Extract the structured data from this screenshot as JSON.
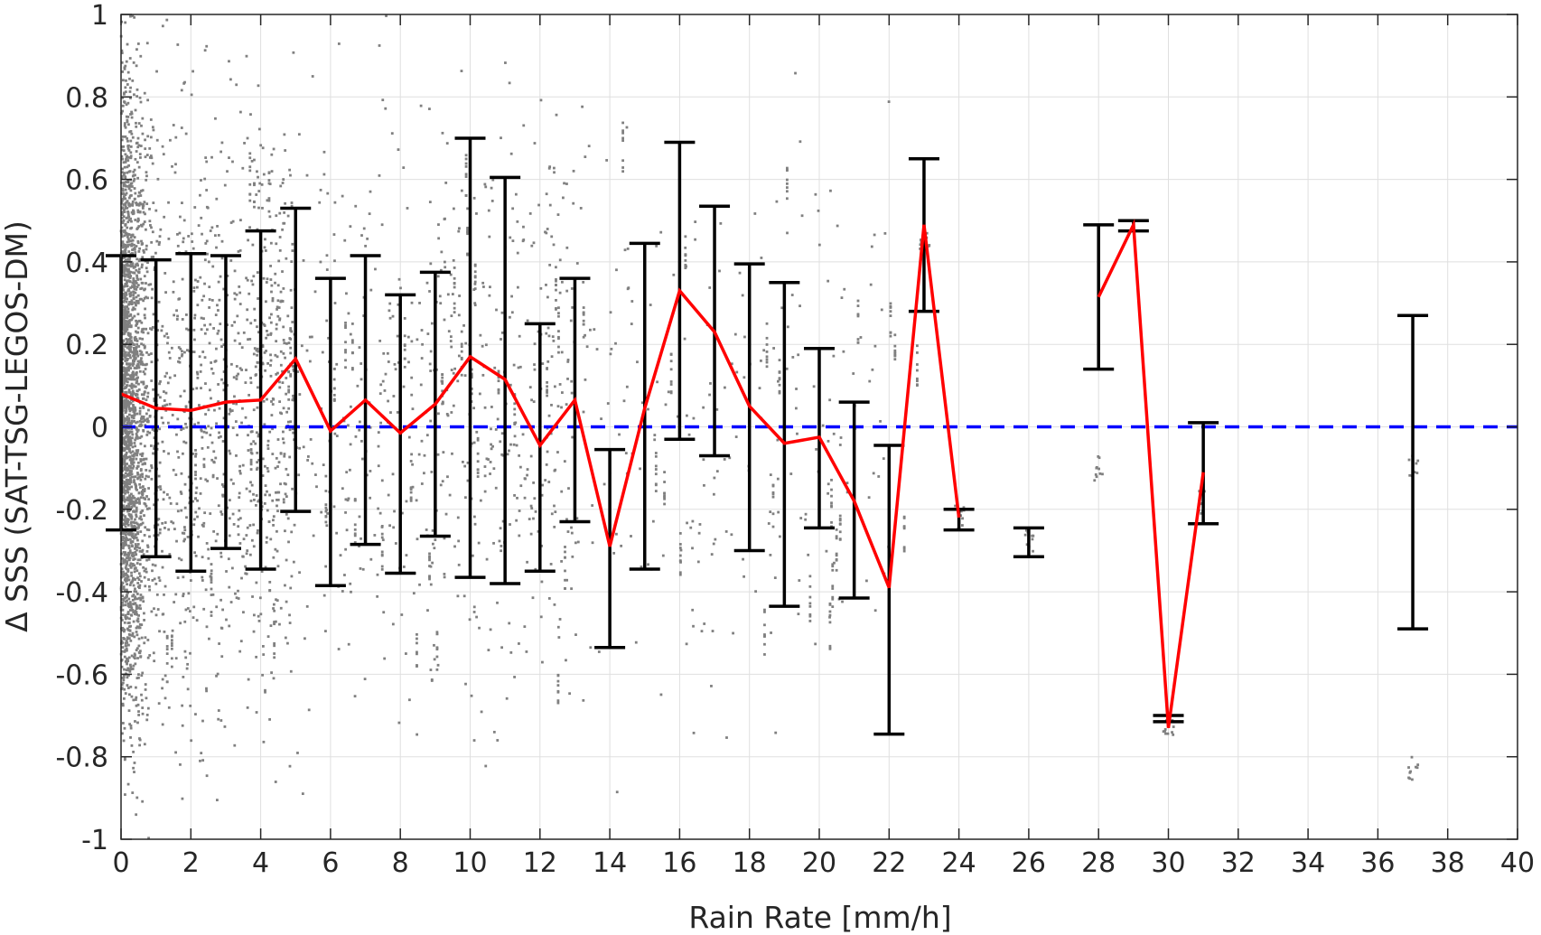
{
  "chart_data": {
    "type": "scatter",
    "xlabel": "Rain Rate [mm/h]",
    "ylabel": "Δ SSS (SAT-TSG-LEGOS-DM)",
    "xlim": [
      0,
      40
    ],
    "ylim": [
      -1,
      1
    ],
    "x_ticks": [
      "0",
      "2",
      "4",
      "6",
      "8",
      "10",
      "12",
      "14",
      "16",
      "18",
      "20",
      "22",
      "24",
      "26",
      "28",
      "30",
      "32",
      "34",
      "36",
      "38",
      "40"
    ],
    "x_tick_values": [
      0,
      2,
      4,
      6,
      8,
      10,
      12,
      14,
      16,
      18,
      20,
      22,
      24,
      26,
      28,
      30,
      32,
      34,
      36,
      38,
      40
    ],
    "y_ticks": [
      "1",
      "0.8",
      "0.6",
      "0.4",
      "0.2",
      "0",
      "-0.2",
      "-0.4",
      "-0.6",
      "-0.8",
      "-1"
    ],
    "y_tick_values": [
      1,
      0.8,
      0.6,
      0.4,
      0.2,
      0,
      -0.2,
      -0.4,
      -0.6,
      -0.8,
      -1
    ],
    "grid": true,
    "reference_line": {
      "y": 0,
      "style": "dashed",
      "color": "#0000ff"
    },
    "series": [
      {
        "type": "line",
        "color": "#ff0000",
        "segments": [
          {
            "x": [
              0,
              1,
              2,
              3,
              4,
              5,
              6,
              7,
              8,
              9,
              10,
              11,
              12,
              13,
              14,
              15,
              16,
              17,
              18,
              19,
              20,
              21,
              22,
              23,
              24
            ],
            "y": [
              0.08,
              0.045,
              0.04,
              0.06,
              0.065,
              0.165,
              -0.01,
              0.065,
              -0.015,
              0.055,
              0.17,
              0.115,
              -0.045,
              0.065,
              -0.29,
              0.045,
              0.33,
              0.23,
              0.05,
              -0.04,
              -0.025,
              -0.18,
              -0.39,
              0.49,
              -0.22
            ]
          },
          {
            "x": [
              28,
              29,
              30,
              31
            ],
            "y": [
              0.315,
              0.49,
              -0.73,
              -0.11
            ]
          }
        ]
      },
      {
        "type": "errorbar",
        "color": "#000000",
        "x": [
          0,
          1,
          2,
          3,
          4,
          5,
          6,
          7,
          8,
          9,
          10,
          11,
          12,
          13,
          14,
          15,
          16,
          17,
          18,
          19,
          20,
          21,
          22,
          23,
          24,
          26,
          28,
          29,
          30,
          31,
          37
        ],
        "upper": [
          0.415,
          0.405,
          0.42,
          0.415,
          0.475,
          0.53,
          0.36,
          0.415,
          0.32,
          0.375,
          0.7,
          0.605,
          0.25,
          0.36,
          -0.055,
          0.445,
          0.69,
          0.535,
          0.395,
          0.35,
          0.19,
          0.06,
          -0.045,
          0.65,
          -0.2,
          -0.245,
          0.49,
          0.5,
          -0.7,
          0.01,
          0.27
        ],
        "lower": [
          -0.25,
          -0.315,
          -0.35,
          -0.295,
          -0.345,
          -0.205,
          -0.385,
          -0.285,
          -0.355,
          -0.265,
          -0.365,
          -0.38,
          -0.35,
          -0.23,
          -0.535,
          -0.345,
          -0.03,
          -0.07,
          -0.3,
          -0.435,
          -0.245,
          -0.415,
          -0.745,
          0.28,
          -0.25,
          -0.315,
          0.14,
          0.475,
          -0.715,
          -0.235,
          -0.49
        ]
      },
      {
        "type": "scatter",
        "color": "#808080",
        "note_density": "dense near 0-5 mm/h, sparse beyond"
      }
    ]
  }
}
